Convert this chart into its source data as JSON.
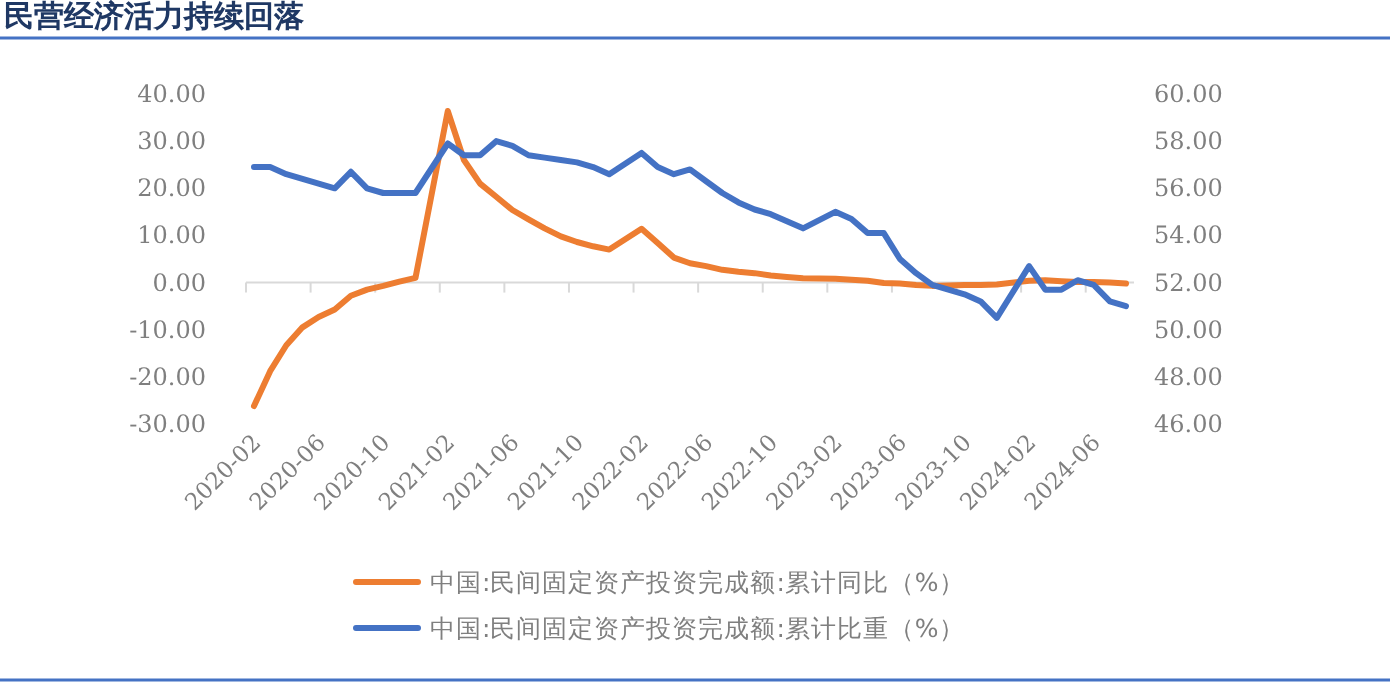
{
  "chart_data": {
    "type": "line",
    "title": "民营经济活力持续回落",
    "legend": "bottom",
    "x": [
      "2020-02",
      "2020-03",
      "2020-04",
      "2020-05",
      "2020-06",
      "2020-07",
      "2020-08",
      "2020-09",
      "2020-10",
      "2020-11",
      "2020-12",
      "2021-02",
      "2021-03",
      "2021-04",
      "2021-05",
      "2021-06",
      "2021-07",
      "2021-08",
      "2021-09",
      "2021-10",
      "2021-11",
      "2021-12",
      "2022-02",
      "2022-03",
      "2022-04",
      "2022-05",
      "2022-06",
      "2022-07",
      "2022-08",
      "2022-09",
      "2022-10",
      "2022-11",
      "2022-12",
      "2023-02",
      "2023-03",
      "2023-04",
      "2023-05",
      "2023-06",
      "2023-07",
      "2023-08",
      "2023-09",
      "2023-10",
      "2023-11",
      "2023-12",
      "2024-02",
      "2024-03",
      "2024-04",
      "2024-05",
      "2024-06",
      "2024-07",
      "2024-08"
    ],
    "xlim": [
      "2020-02",
      "2024-08"
    ],
    "xticks": [
      {
        "value": "2020-02",
        "label": "2020-02"
      },
      {
        "value": "2020-06",
        "label": "2020-06"
      },
      {
        "value": "2020-10",
        "label": "2020-10"
      },
      {
        "value": "2021-02",
        "label": "2021-02"
      },
      {
        "value": "2021-06",
        "label": "2021-06"
      },
      {
        "value": "2021-10",
        "label": "2021-10"
      },
      {
        "value": "2022-02",
        "label": "2022-02"
      },
      {
        "value": "2022-06",
        "label": "2022-06"
      },
      {
        "value": "2022-10",
        "label": "2022-10"
      },
      {
        "value": "2023-02",
        "label": "2023-02"
      },
      {
        "value": "2023-06",
        "label": "2023-06"
      },
      {
        "value": "2023-10",
        "label": "2023-10"
      },
      {
        "value": "2024-02",
        "label": "2024-02"
      },
      {
        "value": "2024-06",
        "label": "2024-06"
      }
    ],
    "ylim": [
      -30,
      40
    ],
    "yticks": [
      {
        "value": -30,
        "label": "-30.00"
      },
      {
        "value": -20,
        "label": "-20.00"
      },
      {
        "value": -10,
        "label": "-10.00"
      },
      {
        "value": 0,
        "label": "0.00"
      },
      {
        "value": 10,
        "label": "10.00"
      },
      {
        "value": 20,
        "label": "20.00"
      },
      {
        "value": 30,
        "label": "30.00"
      },
      {
        "value": 40,
        "label": "40.00"
      }
    ],
    "y2lim": [
      46,
      60
    ],
    "y2ticks": [
      {
        "value": 46,
        "label": "46.00"
      },
      {
        "value": 48,
        "label": "48.00"
      },
      {
        "value": 50,
        "label": "50.00"
      },
      {
        "value": 52,
        "label": "52.00"
      },
      {
        "value": 54,
        "label": "54.00"
      },
      {
        "value": 56,
        "label": "56.00"
      },
      {
        "value": 58,
        "label": "58.00"
      },
      {
        "value": 60,
        "label": "60.00"
      }
    ],
    "series": [
      {
        "name": "中国:民间固定资产投资完成额:累计同比（%）",
        "color": "#ed7d31",
        "values": [
          -26.2,
          -18.8,
          -13.3,
          -9.5,
          -7.3,
          -5.7,
          -2.8,
          -1.5,
          -0.7,
          0.2,
          1.0,
          36.4,
          26.0,
          21.0,
          18.2,
          15.4,
          13.4,
          11.5,
          9.8,
          8.6,
          7.7,
          7.0,
          11.4,
          8.4,
          5.3,
          4.1,
          3.5,
          2.7,
          2.3,
          2.0,
          1.5,
          1.2,
          0.9,
          0.8,
          0.6,
          0.4,
          -0.1,
          -0.2,
          -0.5,
          -0.7,
          -0.6,
          -0.5,
          -0.5,
          -0.4,
          0.4,
          0.5,
          0.3,
          0.1,
          0.1,
          0.0,
          -0.2
        ]
      },
      {
        "name": "中国:民间固定资产投资完成额:累计比重（%）",
        "color": "#4472c4",
        "axis": "y2",
        "values": [
          56.9,
          56.9,
          56.6,
          56.4,
          56.2,
          56.0,
          56.7,
          56.0,
          55.8,
          55.8,
          55.8,
          57.9,
          57.4,
          57.4,
          58.0,
          57.8,
          57.4,
          57.3,
          57.2,
          57.1,
          56.9,
          56.6,
          57.5,
          56.9,
          56.6,
          56.8,
          56.3,
          55.8,
          55.4,
          55.1,
          54.9,
          54.6,
          54.3,
          55.0,
          54.7,
          54.1,
          54.1,
          53.0,
          52.4,
          51.9,
          51.7,
          51.5,
          51.2,
          50.5,
          52.7,
          51.7,
          51.7,
          52.1,
          51.9,
          51.2,
          51.0
        ]
      }
    ]
  }
}
